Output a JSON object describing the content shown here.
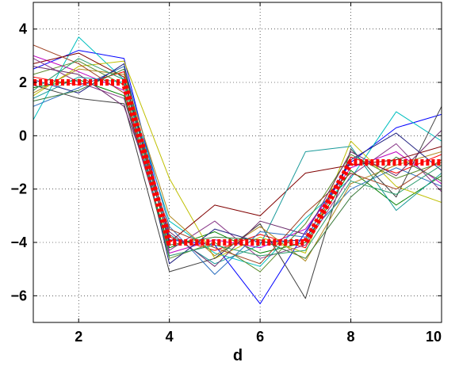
{
  "chart_data": {
    "type": "line",
    "title": "",
    "xlabel": "d",
    "ylabel": "",
    "xlim": [
      1,
      10
    ],
    "ylim": [
      -7,
      5
    ],
    "xticks": [
      2,
      4,
      6,
      8,
      10
    ],
    "yticks": [
      4,
      2,
      0,
      -2,
      -4,
      -6
    ],
    "xtick_labels": [
      "2",
      "4",
      "6",
      "8",
      "10"
    ],
    "ytick_labels": [
      "4",
      "2",
      "0",
      "−2",
      "−4",
      "−6"
    ],
    "grid": true,
    "legend": "none",
    "x": [
      1,
      2,
      3,
      4,
      5,
      6,
      7,
      8,
      9,
      10
    ],
    "mean_series": {
      "color": "#ff0000",
      "style": "dotted-thick",
      "values": [
        2,
        2,
        2,
        -4,
        -4,
        -4,
        -4,
        -1,
        -1,
        -1
      ]
    },
    "series": [
      {
        "color": "#0000ff",
        "values": [
          2.5,
          3.2,
          2.9,
          -3.9,
          -4.1,
          -6.3,
          -3.6,
          -1.0,
          0.3,
          0.8
        ]
      },
      {
        "color": "#008000",
        "values": [
          1.8,
          2.1,
          1.5,
          -4.2,
          -3.6,
          -4.4,
          -4.0,
          -1.3,
          -2.6,
          -1.5
        ]
      },
      {
        "color": "#ff0000",
        "values": [
          2.2,
          1.9,
          2.4,
          -3.8,
          -4.3,
          -3.7,
          -4.2,
          -0.8,
          -1.4,
          -0.7
        ]
      },
      {
        "color": "#00bfbf",
        "values": [
          0.6,
          3.7,
          2.1,
          -3.2,
          -4.4,
          -4.9,
          -3.1,
          -1.6,
          0.9,
          -0.2
        ]
      },
      {
        "color": "#bf00bf",
        "values": [
          3.0,
          2.4,
          1.7,
          -4.4,
          -3.9,
          -4.2,
          -3.5,
          -1.2,
          -0.6,
          -1.8
        ]
      },
      {
        "color": "#bfbf00",
        "values": [
          1.5,
          2.6,
          2.8,
          -1.6,
          -4.6,
          -3.8,
          -4.4,
          -0.2,
          -1.9,
          -2.5
        ]
      },
      {
        "color": "#404040",
        "values": [
          1.9,
          1.4,
          1.2,
          -5.1,
          -4.6,
          -3.3,
          -6.1,
          -0.5,
          -2.3,
          1.1
        ]
      },
      {
        "color": "#800000",
        "values": [
          2.7,
          3.1,
          2.2,
          -4.0,
          -2.6,
          -3.0,
          -1.4,
          -1.1,
          -0.9,
          -0.4
        ]
      },
      {
        "color": "#2b6fbf",
        "values": [
          1.1,
          1.8,
          2.6,
          -3.4,
          -5.2,
          -3.6,
          -3.8,
          -2.0,
          -1.2,
          -1.9
        ]
      },
      {
        "color": "#5a8a2a",
        "values": [
          2.3,
          2.8,
          1.9,
          -4.6,
          -4.0,
          -5.1,
          -3.3,
          -0.7,
          -1.6,
          -1.0
        ]
      },
      {
        "color": "#1a9a9a",
        "values": [
          1.4,
          2.2,
          2.0,
          -3.7,
          -4.8,
          -4.1,
          -0.6,
          -0.4,
          -2.8,
          -1.4
        ]
      },
      {
        "color": "#8a3a8a",
        "values": [
          2.9,
          2.0,
          1.4,
          -4.3,
          -3.2,
          -4.6,
          -4.1,
          -1.5,
          -0.3,
          -2.1
        ]
      },
      {
        "color": "#b08a20",
        "values": [
          1.6,
          2.5,
          2.3,
          -3.0,
          -4.5,
          -3.4,
          -4.7,
          -1.8,
          -1.1,
          -0.6
        ]
      },
      {
        "color": "#202080",
        "values": [
          2.1,
          1.6,
          2.7,
          -4.8,
          -3.5,
          -4.0,
          -3.9,
          -0.9,
          0.1,
          -1.3
        ]
      },
      {
        "color": "#a04020",
        "values": [
          3.4,
          2.7,
          1.6,
          -3.5,
          -4.2,
          -4.8,
          -2.9,
          -1.4,
          -2.0,
          -0.9
        ]
      },
      {
        "color": "#3a7a3a",
        "values": [
          1.3,
          1.7,
          2.5,
          -4.1,
          -3.8,
          -3.9,
          -4.6,
          -2.3,
          -0.8,
          -1.7
        ]
      },
      {
        "color": "#6a2a6a",
        "values": [
          2.6,
          2.3,
          1.1,
          -3.6,
          -4.9,
          -3.2,
          -3.7,
          -0.6,
          -1.5,
          0.2
        ]
      },
      {
        "color": "#2a9a6a",
        "values": [
          1.7,
          2.9,
          2.1,
          -4.5,
          -4.1,
          -4.5,
          -4.3,
          -1.7,
          -2.2,
          -1.1
        ]
      }
    ]
  }
}
